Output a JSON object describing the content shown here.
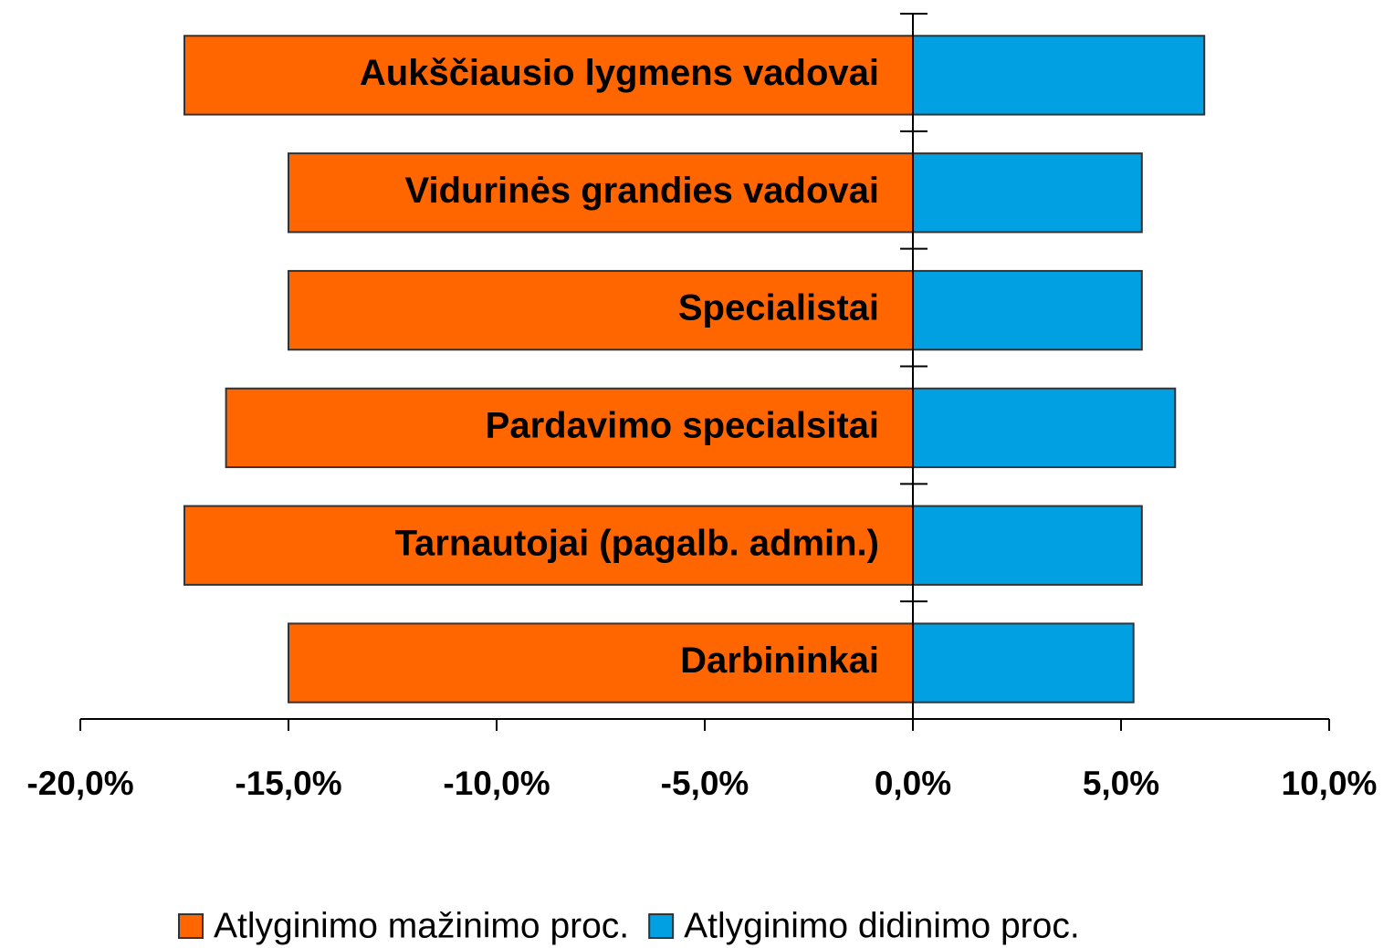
{
  "chart_data": {
    "type": "diverging_bar",
    "categories": [
      "Aukščiausio lygmens vadovai",
      "Vidurinės grandies vadovai",
      "Specialistai",
      "Pardavimo specialsitai",
      "Tarnautojai (pagalb. admin.)",
      "Darbininkai"
    ],
    "series": [
      {
        "name": "Atlyginimo mažinimo proc.",
        "color": "#ff6600",
        "values": [
          -17.5,
          -15,
          -15,
          -16.5,
          -17.5,
          -15
        ]
      },
      {
        "name": "Atlyginimo didinimo proc.",
        "color": "#00a0e2",
        "values": [
          7.0,
          5.5,
          5.5,
          6.3,
          5.5,
          5.3
        ]
      }
    ],
    "xlim": [
      -20,
      10
    ],
    "xticks": [
      {
        "value": -20,
        "label": "-20,0%"
      },
      {
        "value": -15,
        "label": "-15,0%"
      },
      {
        "value": -10,
        "label": "-10,0%"
      },
      {
        "value": -5,
        "label": "-5,0%"
      },
      {
        "value": 0,
        "label": "0,0%"
      },
      {
        "value": 5,
        "label": "5,0%"
      },
      {
        "value": 10,
        "label": "10,0%"
      }
    ],
    "legend": "bottom",
    "grid": false
  }
}
